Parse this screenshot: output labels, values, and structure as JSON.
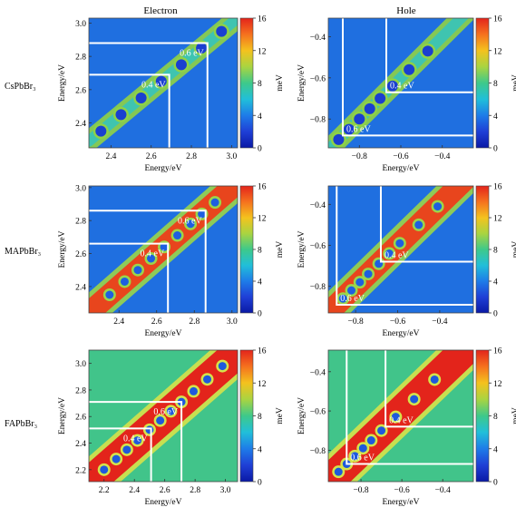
{
  "figure": {
    "col_titles": [
      "Electron",
      "Hole"
    ],
    "row_labels": [
      "CsPbBr₃",
      "MAPbBr₃",
      "FAPbBr₃"
    ]
  },
  "chart_data": [
    {
      "type": "heatmap",
      "id": "cs-electron",
      "row_label": "CsPbBr₃",
      "title": "Electron",
      "xlabel": "Energy/eV",
      "ylabel": "Energy/eV",
      "xlim": [
        2.29,
        3.03
      ],
      "ylim": [
        2.25,
        3.03
      ],
      "xticks": [
        "2.4",
        "2.6",
        "2.8",
        "3.0"
      ],
      "xtick_values": [
        2.4,
        2.6,
        2.8,
        3.0
      ],
      "yticks": [
        "2.4",
        "2.6",
        "2.8",
        "3.0"
      ],
      "ytick_values": [
        2.4,
        2.6,
        2.8,
        3.0
      ],
      "colorbar": {
        "label": "meV",
        "range": [
          0,
          16
        ],
        "ticks": [
          "0",
          "4",
          "8",
          "12",
          "16"
        ],
        "tick_values": [
          0,
          4,
          8,
          12,
          16
        ]
      },
      "intensity": "low",
      "diagonal_spots": [
        2.35,
        2.45,
        2.55,
        2.65,
        2.75,
        2.85,
        2.95
      ],
      "annotations": [
        {
          "text": "0.4 eV",
          "box_edge": 2.69
        },
        {
          "text": "0.6 eV",
          "box_edge": 2.88
        }
      ]
    },
    {
      "type": "heatmap",
      "id": "cs-hole",
      "row_label": "CsPbBr₃",
      "title": "Hole",
      "xlabel": "Energy/eV",
      "ylabel": "Energy/eV",
      "xlim": [
        -0.95,
        -0.25
      ],
      "ylim": [
        -0.94,
        -0.31
      ],
      "xticks": [
        "−0.8",
        "−0.6",
        "−0.4"
      ],
      "xtick_values": [
        -0.8,
        -0.6,
        -0.4
      ],
      "yticks": [
        "−0.8",
        "−0.6",
        "−0.4"
      ],
      "ytick_values": [
        -0.8,
        -0.6,
        -0.4
      ],
      "colorbar": {
        "label": "meV",
        "range": [
          0,
          16
        ],
        "ticks": [
          "0",
          "4",
          "8",
          "12",
          "16"
        ],
        "tick_values": [
          0,
          4,
          8,
          12,
          16
        ]
      },
      "intensity": "low",
      "diagonal_spots": [
        -0.9,
        -0.85,
        -0.8,
        -0.75,
        -0.7,
        -0.64,
        -0.56,
        -0.47
      ],
      "annotations": [
        {
          "text": "0.6 eV",
          "box_edge": -0.88
        },
        {
          "text": "0.4 eV",
          "box_edge": -0.67
        }
      ]
    },
    {
      "type": "heatmap",
      "id": "ma-electron",
      "row_label": "MAPbBr₃",
      "title": "",
      "xlabel": "Energy/eV",
      "ylabel": "Energy/eV",
      "xlim": [
        2.24,
        3.03
      ],
      "ylim": [
        2.24,
        3.01
      ],
      "xticks": [
        "2.4",
        "2.6",
        "2.8",
        "3.0"
      ],
      "xtick_values": [
        2.4,
        2.6,
        2.8,
        3.0
      ],
      "yticks": [
        "2.4",
        "2.6",
        "2.8",
        "3.0"
      ],
      "ytick_values": [
        2.4,
        2.6,
        2.8,
        3.0
      ],
      "colorbar": {
        "label": "meV",
        "range": [
          0,
          16
        ],
        "ticks": [
          "0",
          "4",
          "8",
          "12",
          "16"
        ],
        "tick_values": [
          0,
          4,
          8,
          12,
          16
        ]
      },
      "intensity": "high",
      "diagonal_spots": [
        2.35,
        2.43,
        2.5,
        2.57,
        2.64,
        2.71,
        2.78,
        2.84,
        2.91
      ],
      "annotations": [
        {
          "text": "0.4 eV",
          "box_edge": 2.66
        },
        {
          "text": "0.6 eV",
          "box_edge": 2.86
        }
      ]
    },
    {
      "type": "heatmap",
      "id": "ma-hole",
      "row_label": "MAPbBr₃",
      "title": "",
      "xlabel": "Energy/eV",
      "ylabel": "Energy/eV",
      "xlim": [
        -0.93,
        -0.24
      ],
      "ylim": [
        -0.93,
        -0.31
      ],
      "xticks": [
        "−0.8",
        "−0.6",
        "−0.4"
      ],
      "xtick_values": [
        -0.8,
        -0.6,
        -0.4
      ],
      "yticks": [
        "−0.8",
        "−0.6",
        "−0.4"
      ],
      "ytick_values": [
        -0.8,
        -0.6,
        -0.4
      ],
      "colorbar": {
        "label": "meV",
        "range": [
          0,
          16
        ],
        "ticks": [
          "0",
          "4",
          "8",
          "12",
          "16"
        ],
        "tick_values": [
          0,
          4,
          8,
          12,
          16
        ]
      },
      "intensity": "high",
      "diagonal_spots": [
        -0.86,
        -0.82,
        -0.78,
        -0.74,
        -0.69,
        -0.64,
        -0.59,
        -0.5,
        -0.41
      ],
      "annotations": [
        {
          "text": "0.6 eV",
          "box_edge": -0.89
        },
        {
          "text": "0.4 eV",
          "box_edge": -0.68
        }
      ]
    },
    {
      "type": "heatmap",
      "id": "fa-electron",
      "row_label": "FAPbBr₃",
      "title": "",
      "xlabel": "Energy/eV",
      "ylabel": "Energy/eV",
      "xlim": [
        2.1,
        3.08
      ],
      "ylim": [
        2.11,
        3.1
      ],
      "xticks": [
        "2.2",
        "2.4",
        "2.6",
        "2.8",
        "3.0"
      ],
      "xtick_values": [
        2.2,
        2.4,
        2.6,
        2.8,
        3.0
      ],
      "yticks": [
        "2.2",
        "2.4",
        "2.6",
        "2.8",
        "3.0"
      ],
      "ytick_values": [
        2.2,
        2.4,
        2.6,
        2.8,
        3.0
      ],
      "colorbar": {
        "label": "meV",
        "range": [
          0,
          16
        ],
        "ticks": [
          "0",
          "4",
          "8",
          "12",
          "16"
        ],
        "tick_values": [
          0,
          4,
          8,
          12,
          16
        ]
      },
      "intensity": "saturated",
      "diagonal_spots": [
        2.2,
        2.28,
        2.35,
        2.42,
        2.5,
        2.57,
        2.64,
        2.71,
        2.79,
        2.88,
        2.98
      ],
      "annotations": [
        {
          "text": "0.4 eV",
          "box_edge": 2.51
        },
        {
          "text": "0.6 eV",
          "box_edge": 2.71
        }
      ]
    },
    {
      "type": "heatmap",
      "id": "fa-hole",
      "row_label": "FAPbBr₃",
      "title": "",
      "xlabel": "Energy/eV",
      "ylabel": "Energy/eV",
      "xlim": [
        -0.96,
        -0.25
      ],
      "ylim": [
        -0.96,
        -0.29
      ],
      "xticks": [
        "−0.8",
        "−0.6",
        "−0.4"
      ],
      "xtick_values": [
        -0.8,
        -0.6,
        -0.4
      ],
      "yticks": [
        "−0.8",
        "−0.6",
        "−0.4"
      ],
      "ytick_values": [
        -0.8,
        -0.6,
        -0.4
      ],
      "colorbar": {
        "label": "meV",
        "range": [
          0,
          16
        ],
        "ticks": [
          "0",
          "4",
          "8",
          "12",
          "16"
        ],
        "tick_values": [
          0,
          4,
          8,
          12,
          16
        ]
      },
      "intensity": "saturated",
      "diagonal_spots": [
        -0.91,
        -0.87,
        -0.83,
        -0.79,
        -0.75,
        -0.7,
        -0.63,
        -0.54,
        -0.44
      ],
      "annotations": [
        {
          "text": "0.6 eV",
          "box_edge": -0.87
        },
        {
          "text": "0.4 eV",
          "box_edge": -0.68
        }
      ]
    }
  ]
}
